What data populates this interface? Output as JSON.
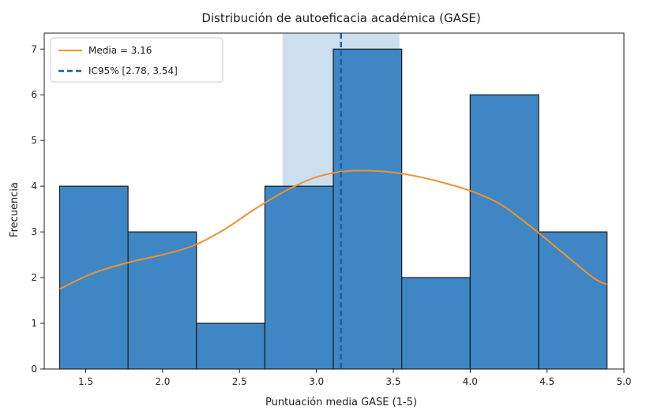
{
  "chart_data": {
    "type": "bar",
    "title": "Distribución de autoeficacia académica (GASE)",
    "xlabel": "Puntuación media GASE (1-5)",
    "ylabel": "Frecuencia",
    "xlim": [
      1.23,
      5.0
    ],
    "ylim": [
      0,
      7.35
    ],
    "xticks": [
      "1.5",
      "2.0",
      "2.5",
      "3.0",
      "3.5",
      "4.0",
      "4.5",
      "5.0"
    ],
    "yticks": [
      "0",
      "1",
      "2",
      "3",
      "4",
      "5",
      "6",
      "7"
    ],
    "bins": [
      {
        "x0": 1.33,
        "x1": 1.775,
        "count": 4
      },
      {
        "x0": 1.775,
        "x1": 2.22,
        "count": 3
      },
      {
        "x0": 2.22,
        "x1": 2.665,
        "count": 1
      },
      {
        "x0": 2.665,
        "x1": 3.11,
        "count": 4
      },
      {
        "x0": 3.11,
        "x1": 3.555,
        "count": 7
      },
      {
        "x0": 3.555,
        "x1": 4.0,
        "count": 2
      },
      {
        "x0": 4.0,
        "x1": 4.445,
        "count": 6
      },
      {
        "x0": 4.445,
        "x1": 4.89,
        "count": 3
      }
    ],
    "kde": {
      "x": [
        1.33,
        1.55,
        1.8,
        2.0,
        2.2,
        2.4,
        2.6,
        2.8,
        3.0,
        3.2,
        3.4,
        3.6,
        3.8,
        4.0,
        4.2,
        4.4,
        4.6,
        4.8,
        4.89
      ],
      "y": [
        1.75,
        2.1,
        2.35,
        2.5,
        2.7,
        3.05,
        3.5,
        3.9,
        4.2,
        4.33,
        4.33,
        4.25,
        4.1,
        3.9,
        3.6,
        3.1,
        2.55,
        2.0,
        1.85
      ]
    },
    "mean": 3.16,
    "ci95": [
      2.78,
      3.54
    ],
    "legend": {
      "position": "top-left",
      "entries": [
        "Media = 3.16",
        "IC95% [2.78, 3.54]"
      ]
    },
    "colors": {
      "bar": "#3f86c4",
      "bar_edge": "#1a1a1a",
      "kde": "#f0912f",
      "mean_line": "#1f5fa8",
      "ci_band": "#a9c9e8"
    },
    "grid": false
  }
}
